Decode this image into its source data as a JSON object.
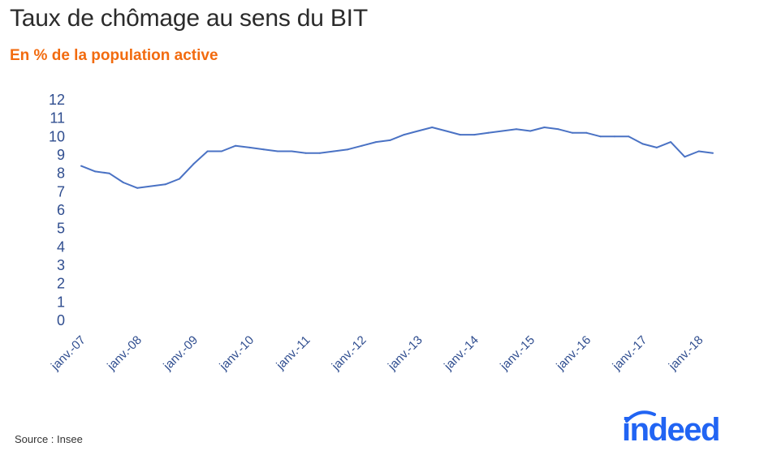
{
  "header": {
    "title": "Taux de chômage au sens du BIT",
    "subtitle": "En % de la population active"
  },
  "footer": {
    "source": "Source : Insee",
    "logo_text": "indeed"
  },
  "colors": {
    "subtitle": "#f26b0f",
    "line": "#4a72c4",
    "axis_text": "#2f4d8f",
    "logo": "#2164f3"
  },
  "chart_data": {
    "type": "line",
    "title": "Taux de chômage au sens du BIT",
    "subtitle": "En % de la population active",
    "ylim": [
      0,
      12
    ],
    "yticks": [
      0,
      1,
      2,
      3,
      4,
      5,
      6,
      7,
      8,
      9,
      10,
      11,
      12
    ],
    "xticks": [
      "janv.-07",
      "janv.-08",
      "janv.-09",
      "janv.-10",
      "janv.-11",
      "janv.-12",
      "janv.-13",
      "janv.-14",
      "janv.-15",
      "janv.-16",
      "janv.-17",
      "janv.-18"
    ],
    "grid": false,
    "series": [
      {
        "values": [
          8.4,
          8.1,
          8.0,
          7.5,
          7.2,
          7.3,
          7.4,
          7.7,
          8.5,
          9.2,
          9.2,
          9.5,
          9.4,
          9.3,
          9.2,
          9.2,
          9.1,
          9.1,
          9.2,
          9.3,
          9.5,
          9.7,
          9.8,
          10.1,
          10.3,
          10.5,
          10.3,
          10.1,
          10.1,
          10.2,
          10.3,
          10.4,
          10.3,
          10.5,
          10.4,
          10.2,
          10.2,
          10.0,
          10.0,
          10.0,
          9.6,
          9.4,
          9.7,
          8.9,
          9.2,
          9.1
        ]
      }
    ]
  }
}
